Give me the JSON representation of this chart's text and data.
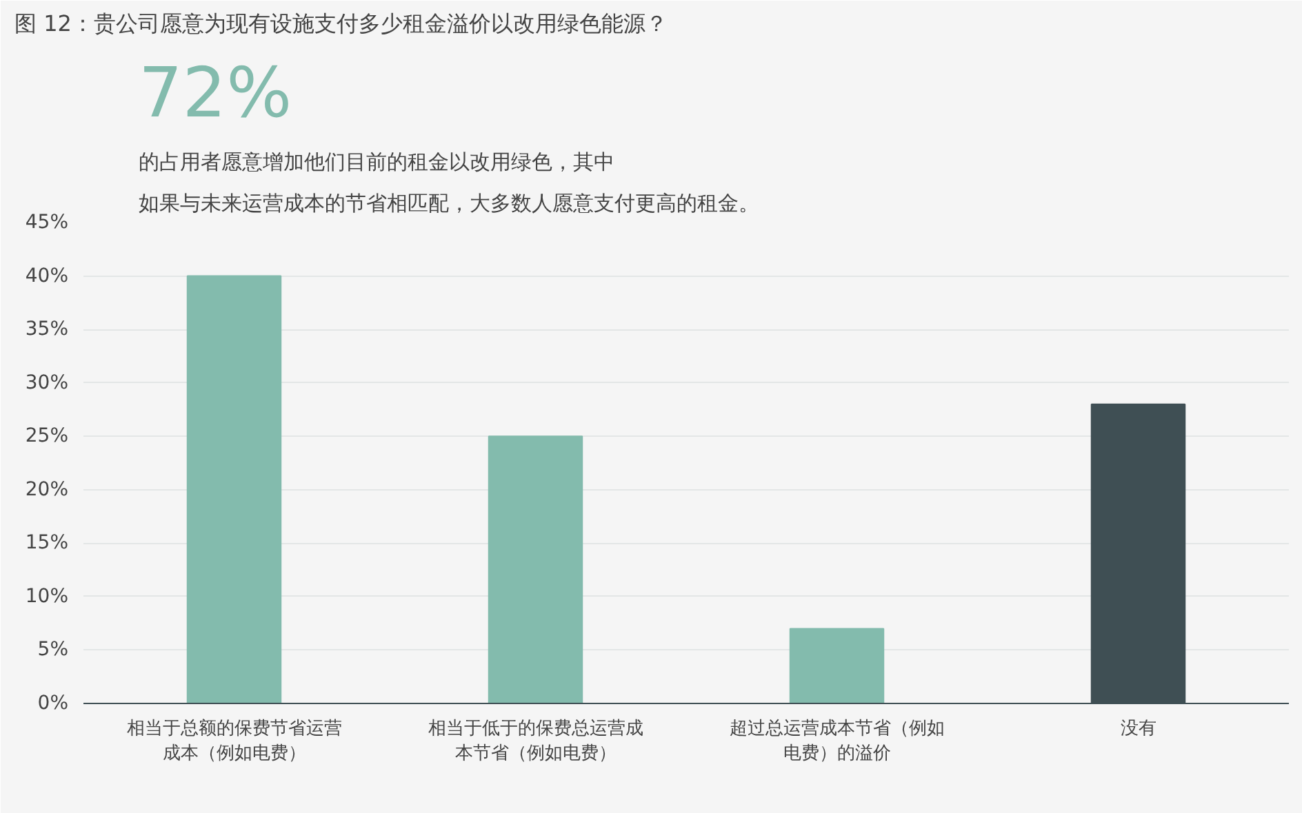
{
  "chart_data": {
    "type": "bar",
    "title": "图 12：贵公司愿意为现有设施支付多少租金溢价以改用绿色能源？",
    "annotations": [
      "72%",
      "的占用者愿意增加他们目前的租金以改用绿色，其中",
      "如果与未来运营成本的节省相匹配，大多数人愿意支付更高的租金。"
    ],
    "categories": [
      "相当于总额的保费节省运营成本（例如电费）",
      "相当于低于的保费总运营成本节省（例如电费）",
      "超过总运营成本节省（例如电费）的溢价",
      "没有"
    ],
    "values": [
      40,
      25,
      7,
      28
    ],
    "colors": [
      "#83bbad",
      "#83bbad",
      "#83bbad",
      "#3f4f54"
    ],
    "ylim": [
      0,
      45
    ],
    "yticks": [
      {
        "value": 0,
        "label": "0%"
      },
      {
        "value": 5,
        "label": "5%"
      },
      {
        "value": 10,
        "label": "10%"
      },
      {
        "value": 15,
        "label": "15%"
      },
      {
        "value": 20,
        "label": "20%"
      },
      {
        "value": 25,
        "label": "25%"
      },
      {
        "value": 30,
        "label": "30%"
      },
      {
        "value": 35,
        "label": "35%"
      },
      {
        "value": 40,
        "label": "40%"
      },
      {
        "value": 45,
        "label": "45%"
      }
    ],
    "grid": "y"
  }
}
